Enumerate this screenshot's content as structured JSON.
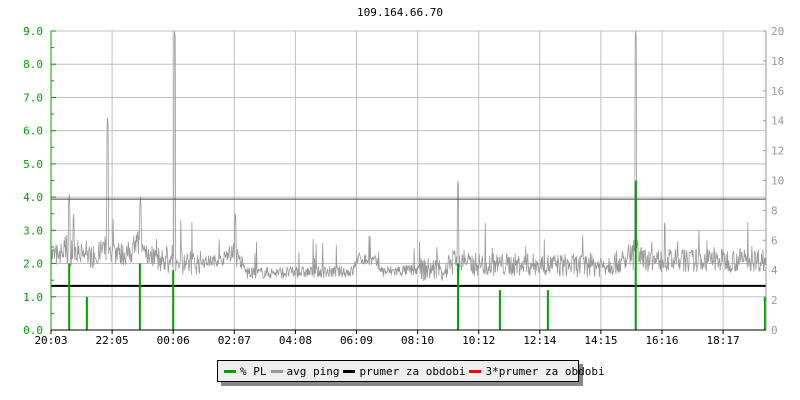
{
  "title": "109.164.66.70",
  "chart_data": {
    "type": "line",
    "title": "109.164.66.70",
    "x_tick_labels": [
      "20:03",
      "22:05",
      "00:06",
      "02:07",
      "04:08",
      "06:09",
      "08:10",
      "10:12",
      "12:14",
      "14:15",
      "16:16",
      "18:17"
    ],
    "y_left": {
      "range": [
        0,
        9
      ],
      "tick_labels": [
        "0.0",
        "1.0",
        "2.0",
        "3.0",
        "4.0",
        "5.0",
        "6.0",
        "7.0",
        "8.0",
        "9.0"
      ],
      "color": "#00a000"
    },
    "y_right": {
      "range": [
        0,
        20
      ],
      "tick_labels": [
        "0",
        "2",
        "4",
        "6",
        "8",
        "10",
        "12",
        "14",
        "16",
        "18",
        "20"
      ]
    },
    "grid": true,
    "legend_position": "bottom",
    "series": [
      {
        "name": "% PL",
        "color": "#00a000",
        "axis": "left",
        "type": "spikes",
        "points": [
          [
            "20:39",
            2.0
          ],
          [
            "21:14",
            1.0
          ],
          [
            "22:59",
            2.0
          ],
          [
            "00:05",
            1.8
          ],
          [
            "09:29",
            2.0
          ],
          [
            "10:52",
            1.2
          ],
          [
            "12:27",
            1.2
          ],
          [
            "15:21",
            4.5
          ],
          [
            "19:37",
            1.0
          ]
        ]
      },
      {
        "name": "avg ping",
        "color": "#999999",
        "axis": "right",
        "baseline": [
          [
            "20:03",
            5.0
          ],
          [
            "21:30",
            4.9
          ],
          [
            "23:00",
            5.2
          ],
          [
            "00:10",
            4.3
          ],
          [
            "02:00",
            4.8
          ],
          [
            "02:30",
            3.8
          ],
          [
            "06:00",
            3.9
          ],
          [
            "06:10",
            4.8
          ],
          [
            "06:45",
            4.6
          ],
          [
            "07:00",
            3.9
          ],
          [
            "09:00",
            4.1
          ],
          [
            "10:00",
            4.4
          ],
          [
            "14:00",
            4.3
          ],
          [
            "15:00",
            4.6
          ],
          [
            "20:00",
            4.7
          ]
        ],
        "spikes": [
          [
            "20:39",
            9.1
          ],
          [
            "21:55",
            14.2
          ],
          [
            "23:00",
            8.9
          ],
          [
            "00:08",
            20
          ],
          [
            "02:08",
            7.8
          ],
          [
            "09:29",
            10.0
          ],
          [
            "15:21",
            20
          ]
        ]
      },
      {
        "name": "prumer za obdobi",
        "color": "#000000",
        "axis": "left",
        "value": 1.33
      },
      {
        "name": "3*prumer za obdobi",
        "color": "#ff0000",
        "axis": "left",
        "value": 4.0
      }
    ]
  }
}
